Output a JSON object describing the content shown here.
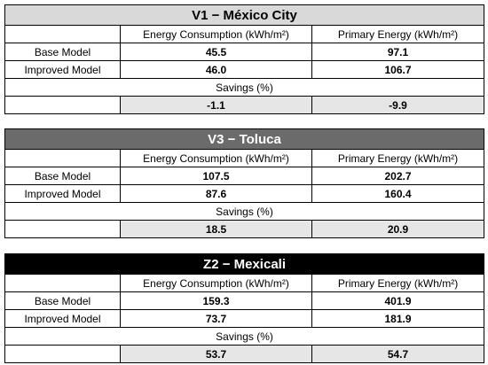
{
  "tables": [
    {
      "title": "V1 − México City",
      "col_energy": "Energy Consumption (kWh/m²)",
      "col_primary": "Primary Energy (kWh/m²)",
      "base_label": "Base Model",
      "base_energy": "45.5",
      "base_primary": "97.1",
      "improved_label": "Improved Model",
      "improved_energy": "46.0",
      "improved_primary": "106.7",
      "savings_label": "Savings (%)",
      "savings_energy": "-1.1",
      "savings_primary": "-9.9",
      "header_color": "#d9d9d9"
    },
    {
      "title": "V3 − Toluca",
      "col_energy": "Energy Consumption (kWh/m²)",
      "col_primary": "Primary Energy (kWh/m²)",
      "base_label": "Base Model",
      "base_energy": "107.5",
      "base_primary": "202.7",
      "improved_label": "Improved Model",
      "improved_energy": "87.6",
      "improved_primary": "160.4",
      "savings_label": "Savings (%)",
      "savings_energy": "18.5",
      "savings_primary": "20.9",
      "header_color": "#6b6b6b"
    },
    {
      "title": "Z2 − Mexicali",
      "col_energy": "Energy Consumption (kWh/m²)",
      "col_primary": "Primary Energy (kWh/m²)",
      "base_label": "Base Model",
      "base_energy": "159.3",
      "base_primary": "401.9",
      "improved_label": "Improved Model",
      "improved_energy": "73.7",
      "improved_primary": "181.9",
      "savings_label": "Savings (%)",
      "savings_energy": "53.7",
      "savings_primary": "54.7",
      "header_color": "#000000"
    }
  ]
}
